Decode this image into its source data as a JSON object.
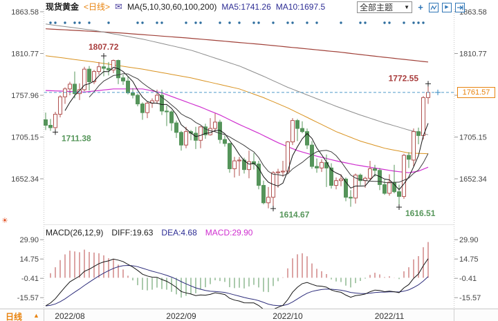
{
  "header": {
    "symbol": "现货黄金",
    "period_tag": "<日线>",
    "ma_label": "MA(5,10,30,60,100,200)",
    "ma5_label": "MA5:1741.26",
    "ma10_label": "MA10:1697.5",
    "theme_dropdown": "全部主题"
  },
  "icons": {
    "mail": "✉",
    "dropdown_arrow": "▼",
    "crosshair": "+",
    "play": "▶",
    "sun": "☀",
    "up_triangle": "▲"
  },
  "price_axis": {
    "ticks": [
      "1863.58",
      "1810.77",
      "1757.96",
      "1705.15",
      "1652.34"
    ]
  },
  "macd_axis": {
    "ticks": [
      "29.90",
      "14.75",
      "-0.41",
      "-15.57"
    ]
  },
  "price_box": {
    "value": "1761.57"
  },
  "macd_header": {
    "title": "MACD(26,12,9)",
    "diff": "DIFF:19.63",
    "dea": "DEA:4.68",
    "macd": "MACD:29.90"
  },
  "footer": {
    "period": "日线"
  },
  "colors": {
    "up": "#b0504e",
    "down": "#55945a",
    "ma5": "#141414",
    "ma10": "#3c3c3c",
    "ma30": "#cf2ecf",
    "ma60": "#d9921f",
    "ma100": "#8c8c8c",
    "ma200": "#a04038",
    "dash_line": "#4f9ac9",
    "price_accent": "#e8820c",
    "hist_pos": "#b84848",
    "hist_neg": "#55945a",
    "diff_line": "#141414",
    "dea_line": "#2b2b7a",
    "dots": "#2e6e9e",
    "annotation_high": "#a83c3c",
    "annotation_low": "#56965a",
    "toolbar_blue": "#2e75b6"
  },
  "chart_data": {
    "type": "candlestick",
    "title": "现货黄金 日线",
    "indicator": "MACD(26,12,9)",
    "ma_values": {
      "ma5": 1741.26,
      "ma10": 1697.5
    },
    "macd_values": {
      "diff": 19.63,
      "dea": 4.68,
      "macd": 29.9
    },
    "current_price": 1761.57,
    "price_axis_ticks": [
      1863.58,
      1810.77,
      1757.96,
      1705.15,
      1652.34
    ],
    "macd_axis_ticks": [
      29.9,
      14.75,
      -0.41,
      -15.57
    ],
    "x_month_labels": [
      "2022/08",
      "2022/09",
      "2022/10",
      "2022/11"
    ],
    "month_start_indices": [
      5,
      28,
      50,
      71
    ],
    "candles": [
      [
        1727,
        1736,
        1714,
        1720
      ],
      [
        1720,
        1728,
        1713,
        1717
      ],
      [
        1717,
        1737,
        1711.38,
        1734
      ],
      [
        1734,
        1758,
        1730,
        1756
      ],
      [
        1756,
        1768,
        1747,
        1766
      ],
      [
        1766,
        1775,
        1758,
        1772
      ],
      [
        1772,
        1788,
        1754,
        1760
      ],
      [
        1760,
        1773,
        1752,
        1765
      ],
      [
        1765,
        1794,
        1763,
        1791
      ],
      [
        1791,
        1795,
        1764,
        1775
      ],
      [
        1775,
        1790,
        1772,
        1788
      ],
      [
        1788,
        1800,
        1784,
        1794
      ],
      [
        1794,
        1807.72,
        1782,
        1792
      ],
      [
        1792,
        1800,
        1783,
        1790
      ],
      [
        1790,
        1803,
        1786,
        1802
      ],
      [
        1802,
        1803,
        1772,
        1780
      ],
      [
        1780,
        1784,
        1771,
        1776
      ],
      [
        1776,
        1782,
        1759,
        1761
      ],
      [
        1761,
        1767,
        1754,
        1758
      ],
      [
        1758,
        1760,
        1744,
        1747
      ],
      [
        1747,
        1749,
        1727,
        1736
      ],
      [
        1736,
        1750,
        1729,
        1748
      ],
      [
        1748,
        1754,
        1742,
        1751
      ],
      [
        1751,
        1765,
        1747,
        1758
      ],
      [
        1758,
        1765,
        1733,
        1738
      ],
      [
        1738,
        1745,
        1719,
        1737
      ],
      [
        1737,
        1739,
        1713,
        1723
      ],
      [
        1723,
        1726,
        1704,
        1711
      ],
      [
        1711,
        1713,
        1688,
        1695
      ],
      [
        1695,
        1718,
        1691,
        1712
      ],
      [
        1712,
        1714,
        1701,
        1710
      ],
      [
        1710,
        1718,
        1690,
        1701
      ],
      [
        1701,
        1719,
        1691,
        1718
      ],
      [
        1718,
        1722,
        1703,
        1708
      ],
      [
        1708,
        1729,
        1707,
        1716
      ],
      [
        1716,
        1735,
        1712,
        1724
      ],
      [
        1724,
        1727,
        1697,
        1702
      ],
      [
        1702,
        1707,
        1693,
        1697
      ],
      [
        1697,
        1698,
        1660,
        1665
      ],
      [
        1665,
        1680,
        1654,
        1675
      ],
      [
        1675,
        1680,
        1656,
        1676
      ],
      [
        1676,
        1679,
        1659,
        1664
      ],
      [
        1664,
        1688,
        1653,
        1674
      ],
      [
        1674,
        1685,
        1664,
        1671
      ],
      [
        1671,
        1675,
        1639,
        1644
      ],
      [
        1644,
        1650,
        1620,
        1622
      ],
      [
        1622,
        1642,
        1615,
        1629
      ],
      [
        1629,
        1662,
        1614.67,
        1660
      ],
      [
        1660,
        1665,
        1641,
        1661
      ],
      [
        1661,
        1675,
        1655,
        1662
      ],
      [
        1662,
        1700,
        1659,
        1699
      ],
      [
        1699,
        1729,
        1695,
        1726
      ],
      [
        1726,
        1728,
        1700,
        1716
      ],
      [
        1716,
        1725,
        1710,
        1712
      ],
      [
        1712,
        1716,
        1690,
        1695
      ],
      [
        1695,
        1700,
        1665,
        1668
      ],
      [
        1668,
        1678,
        1660,
        1666
      ],
      [
        1666,
        1677,
        1661,
        1673
      ],
      [
        1673,
        1683,
        1642,
        1666
      ],
      [
        1666,
        1672,
        1640,
        1644
      ],
      [
        1644,
        1654,
        1639,
        1650
      ],
      [
        1650,
        1658,
        1643,
        1652
      ],
      [
        1652,
        1654,
        1624,
        1629
      ],
      [
        1629,
        1638,
        1617,
        1628
      ],
      [
        1628,
        1659,
        1621,
        1657
      ],
      [
        1657,
        1659,
        1644,
        1650
      ],
      [
        1650,
        1655,
        1641,
        1653
      ],
      [
        1653,
        1675,
        1650,
        1665
      ],
      [
        1665,
        1670,
        1655,
        1663
      ],
      [
        1663,
        1666,
        1638,
        1645
      ],
      [
        1645,
        1651,
        1632,
        1634
      ],
      [
        1634,
        1658,
        1631,
        1648
      ],
      [
        1648,
        1670,
        1634,
        1636
      ],
      [
        1636,
        1645,
        1616.51,
        1630
      ],
      [
        1630,
        1684,
        1627,
        1682
      ],
      [
        1682,
        1686,
        1666,
        1677
      ],
      [
        1676,
        1716,
        1668,
        1712
      ],
      [
        1712,
        1717,
        1696,
        1707
      ],
      [
        1707,
        1757,
        1702,
        1755
      ],
      [
        1755,
        1772.55,
        1747,
        1761.57
      ]
    ],
    "ma_overlays": {
      "ma30_samples": [
        [
          0,
          1764
        ],
        [
          8,
          1762
        ],
        [
          14,
          1766
        ],
        [
          20,
          1766
        ],
        [
          24,
          1761
        ],
        [
          28,
          1752
        ],
        [
          32,
          1743
        ],
        [
          36,
          1733
        ],
        [
          40,
          1721
        ],
        [
          44,
          1710
        ],
        [
          48,
          1698
        ],
        [
          52,
          1688
        ],
        [
          56,
          1681
        ],
        [
          60,
          1675
        ],
        [
          64,
          1670
        ],
        [
          68,
          1666
        ],
        [
          72,
          1662
        ],
        [
          75,
          1660
        ],
        [
          77,
          1662
        ],
        [
          79,
          1667
        ]
      ],
      "ma60_samples": [
        [
          0,
          1808
        ],
        [
          10,
          1800
        ],
        [
          20,
          1791
        ],
        [
          30,
          1780
        ],
        [
          40,
          1766
        ],
        [
          45,
          1755
        ],
        [
          50,
          1742
        ],
        [
          55,
          1727
        ],
        [
          60,
          1712
        ],
        [
          65,
          1700
        ],
        [
          70,
          1691
        ],
        [
          75,
          1685
        ],
        [
          79,
          1684
        ]
      ],
      "ma100_samples": [
        [
          0,
          1848
        ],
        [
          10,
          1840
        ],
        [
          20,
          1829
        ],
        [
          30,
          1815
        ],
        [
          40,
          1795
        ],
        [
          45,
          1782
        ],
        [
          50,
          1768
        ],
        [
          55,
          1756
        ],
        [
          60,
          1744
        ],
        [
          65,
          1733
        ],
        [
          70,
          1723
        ],
        [
          75,
          1714
        ],
        [
          79,
          1708
        ]
      ],
      "ma200_samples": [
        [
          0,
          1842
        ],
        [
          15,
          1837
        ],
        [
          30,
          1830
        ],
        [
          45,
          1822
        ],
        [
          60,
          1813
        ],
        [
          70,
          1806
        ],
        [
          79,
          1800
        ]
      ]
    },
    "annotations": [
      {
        "label": "1807.72",
        "index": 12,
        "price": 1807.72,
        "kind": "high"
      },
      {
        "label": "1711.38",
        "index": 2,
        "price": 1711.38,
        "kind": "low"
      },
      {
        "label": "1614.67",
        "index": 47,
        "price": 1614.67,
        "kind": "low"
      },
      {
        "label": "1616.51",
        "index": 73,
        "price": 1616.51,
        "kind": "low"
      },
      {
        "label": "1772.55",
        "index": 79,
        "price": 1772.55,
        "kind": "high"
      }
    ],
    "marker_dot_indices": [
      1,
      2,
      4,
      6,
      7,
      9,
      13,
      19,
      20,
      23,
      24,
      29,
      31,
      32,
      36,
      38,
      40,
      43,
      44,
      47,
      50,
      51,
      54,
      56,
      61,
      65,
      66,
      70,
      71,
      74,
      76,
      77,
      78
    ]
  }
}
